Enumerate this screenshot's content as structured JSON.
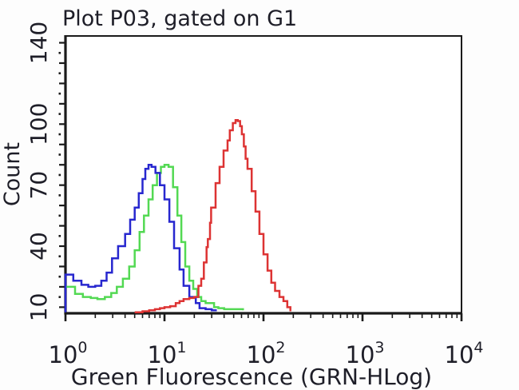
{
  "title": "Plot P03, gated on G1",
  "x_axis": {
    "label": "Green Fluorescence (GRN-HLog)",
    "tick_base": "10",
    "tick_exponents": [
      "0",
      "1",
      "2",
      "3",
      "4"
    ]
  },
  "y_axis": {
    "label": "Count",
    "tick_labels": [
      "10",
      "40",
      "70",
      "100",
      "140"
    ]
  },
  "colors": {
    "blue_curve": "#2727cf",
    "green_curve": "#53d953",
    "red_curve": "#dd3333",
    "axis": "#1a1a1a",
    "text": "#1e1e28",
    "background": "#fdfdfd"
  },
  "chart_data": {
    "type": "line",
    "subtype": "flow-cytometry-step-histogram",
    "title": "Plot P03, gated on G1",
    "xlabel": "Green Fluorescence (GRN-HLog)",
    "ylabel": "Count",
    "x_scale": "log",
    "xlim": [
      1,
      10000
    ],
    "ylim": [
      7,
      143
    ],
    "x_ticks": [
      1,
      10,
      100,
      1000,
      10000
    ],
    "y_ticks": [
      10,
      40,
      70,
      100,
      140
    ],
    "y_minor_step": 10,
    "grid": "off",
    "legend": "none",
    "series": [
      {
        "name": "green",
        "color": "#53d953",
        "points": [
          [
            1,
            20
          ],
          [
            1.25,
            16.5
          ],
          [
            1.5,
            15
          ],
          [
            1.8,
            14.5
          ],
          [
            2.1,
            14
          ],
          [
            2.5,
            15
          ],
          [
            2.9,
            17
          ],
          [
            3.3,
            20
          ],
          [
            3.8,
            24
          ],
          [
            4.4,
            30
          ],
          [
            5,
            38
          ],
          [
            5.6,
            47
          ],
          [
            6.2,
            55
          ],
          [
            6.9,
            63
          ],
          [
            7.6,
            70
          ],
          [
            8.4,
            76
          ],
          [
            9.2,
            79
          ],
          [
            10,
            80
          ],
          [
            11,
            79
          ],
          [
            12.2,
            69
          ],
          [
            13.5,
            55
          ],
          [
            14.8,
            42
          ],
          [
            16.2,
            30
          ],
          [
            17.8,
            23
          ],
          [
            19.5,
            19
          ],
          [
            21.4,
            15
          ],
          [
            23.5,
            13
          ],
          [
            26,
            12
          ],
          [
            28.5,
            12
          ],
          [
            31.7,
            10
          ],
          [
            35,
            9.5
          ],
          [
            40,
            9
          ],
          [
            47,
            9
          ],
          [
            55,
            9
          ],
          [
            62,
            8.5
          ]
        ]
      },
      {
        "name": "blue",
        "color": "#2727cf",
        "points": [
          [
            1,
            7.5
          ],
          [
            1,
            26
          ],
          [
            1.2,
            23
          ],
          [
            1.45,
            21
          ],
          [
            1.7,
            20
          ],
          [
            2,
            20.5
          ],
          [
            2.3,
            23
          ],
          [
            2.6,
            27
          ],
          [
            2.95,
            34
          ],
          [
            3.4,
            40
          ],
          [
            4,
            46
          ],
          [
            4.5,
            53
          ],
          [
            5,
            59
          ],
          [
            5.5,
            66
          ],
          [
            6,
            73
          ],
          [
            6.4,
            78
          ],
          [
            6.9,
            80
          ],
          [
            7.4,
            79
          ],
          [
            8.1,
            76
          ],
          [
            9,
            70
          ],
          [
            10,
            63
          ],
          [
            11.2,
            52
          ],
          [
            12.5,
            39
          ],
          [
            14.2,
            28.5
          ],
          [
            15.6,
            20.5
          ],
          [
            17.8,
            15
          ],
          [
            20.7,
            12
          ],
          [
            22.6,
            9.5
          ],
          [
            26,
            9
          ],
          [
            30,
            8.5
          ],
          [
            33,
            8
          ]
        ]
      },
      {
        "name": "red",
        "color": "#dd3333",
        "points": [
          [
            5,
            7.5
          ],
          [
            6,
            8
          ],
          [
            7,
            8.5
          ],
          [
            8,
            9
          ],
          [
            9,
            9.5
          ],
          [
            10,
            10
          ],
          [
            11.4,
            10.5
          ],
          [
            13,
            12
          ],
          [
            14.2,
            13
          ],
          [
            15.6,
            14
          ],
          [
            17.8,
            14.5
          ],
          [
            20,
            15
          ],
          [
            22,
            20.5
          ],
          [
            23.5,
            24
          ],
          [
            25,
            32
          ],
          [
            26.6,
            39.5
          ],
          [
            27.4,
            43.5
          ],
          [
            28.8,
            51.5
          ],
          [
            29.6,
            59
          ],
          [
            32.8,
            71
          ],
          [
            36,
            79
          ],
          [
            39.5,
            87
          ],
          [
            43.4,
            92
          ],
          [
            45.7,
            97
          ],
          [
            49,
            100.5
          ],
          [
            52.2,
            102
          ],
          [
            55,
            101.5
          ],
          [
            58,
            99
          ],
          [
            60.5,
            95
          ],
          [
            63.3,
            89
          ],
          [
            66,
            83
          ],
          [
            69,
            78
          ],
          [
            76,
            67
          ],
          [
            83,
            57
          ],
          [
            91,
            46
          ],
          [
            100,
            36
          ],
          [
            110,
            28
          ],
          [
            120,
            22
          ],
          [
            131,
            18
          ],
          [
            145,
            15
          ],
          [
            159,
            13
          ],
          [
            174,
            10
          ],
          [
            187,
            8
          ]
        ]
      }
    ]
  }
}
